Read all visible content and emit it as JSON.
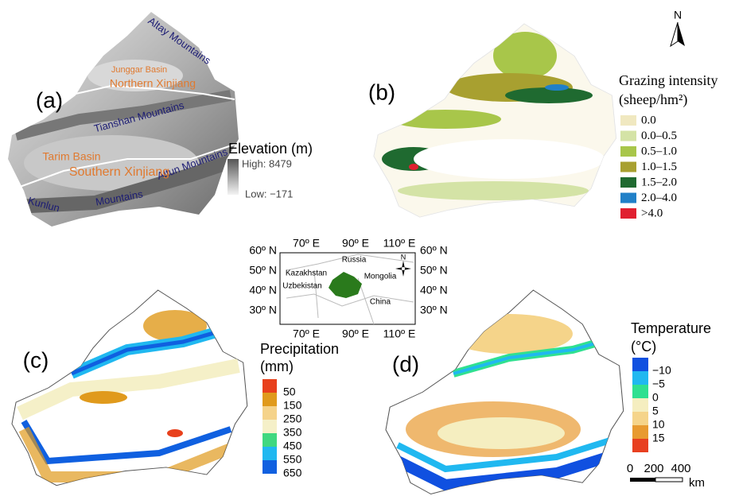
{
  "panel_a": {
    "label": "(a)",
    "mountains": [
      "Altay Mountains",
      "Tianshan Mountains",
      "Altun Mountains",
      "Kunlun",
      "Mountains"
    ],
    "regions": [
      "Junggar Basin",
      "Northern Xinjiang",
      "Tarim Basin",
      "Southern Xinjiang"
    ],
    "legend_title": "Elevation (m)",
    "high": "High: 8479",
    "low": "Low: −171"
  },
  "panel_b": {
    "label": "(b)",
    "north": "N",
    "legend_title": [
      "Grazing intensity",
      "(sheep/hm²)"
    ],
    "legend": [
      {
        "label": "0.0",
        "color": "#f0e8c0"
      },
      {
        "label": "0.0–0.5",
        "color": "#d4e3a6"
      },
      {
        "label": "0.5–1.0",
        "color": "#a8c64a"
      },
      {
        "label": "1.0–1.5",
        "color": "#a8a030"
      },
      {
        "label": "1.5–2.0",
        "color": "#1f6a30"
      },
      {
        "label": "2.0–4.0",
        "color": "#2080c8"
      },
      {
        "label": ">4.0",
        "color": "#e02030"
      }
    ]
  },
  "inset": {
    "lon_labels": [
      "70º E",
      "90º E",
      "110º E"
    ],
    "lat_labels": [
      "60º N",
      "50º N",
      "40º N",
      "30º N"
    ],
    "countries": [
      "Russia",
      "Kazakhstan",
      "Mongolia",
      "Uzbekistan",
      "China"
    ],
    "north": "N"
  },
  "panel_c": {
    "label": "(c)",
    "legend_title": [
      "Precipitation",
      "(mm)"
    ],
    "colors": [
      "#e8401c",
      "#e09a1c",
      "#f5d38a",
      "#f5f0c8",
      "#40d880",
      "#20b8f0",
      "#1060e0"
    ],
    "labels": [
      "50",
      "150",
      "250",
      "350",
      "450",
      "550",
      "650"
    ]
  },
  "panel_d": {
    "label": "(d)",
    "legend_title": [
      "Temperature",
      "(°C)"
    ],
    "colors": [
      "#1050e0",
      "#20b8f0",
      "#30e090",
      "#f5eec0",
      "#f5d48a",
      "#e89a30",
      "#e84020"
    ],
    "labels": [
      "−10",
      "−5",
      "0",
      "5",
      "10",
      "15"
    ],
    "scale": [
      "0",
      "200",
      "400",
      "km"
    ]
  }
}
